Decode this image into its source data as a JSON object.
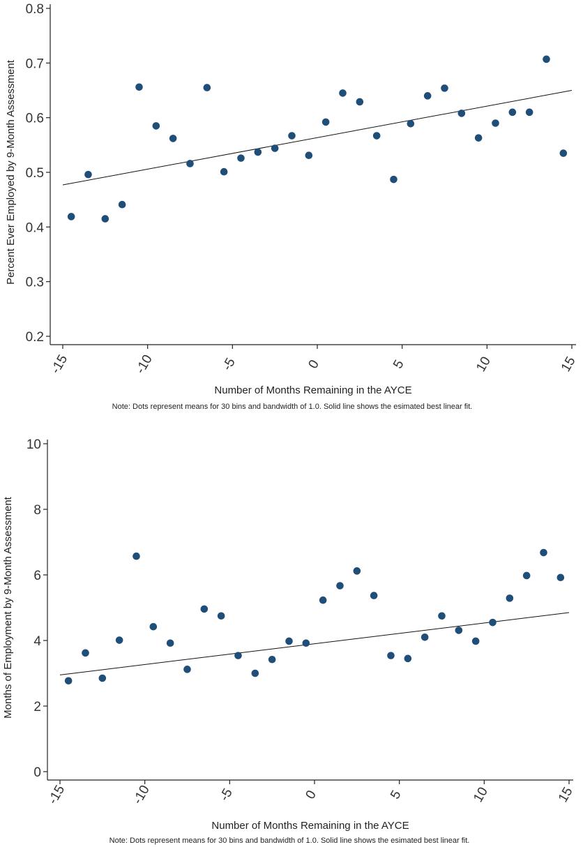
{
  "chart_data": [
    {
      "type": "scatter",
      "title": "",
      "xlabel": "Number of Months Remaining in the AYCE",
      "ylabel": "Percent Ever Employed by 9-Month Assessment",
      "note": "Note: Dots represent means for 30 bins and bandwidth of 1.0. Solid line shows the esimated best linear fit.",
      "xlim": [
        -15,
        15
      ],
      "ylim": [
        0.2,
        0.8
      ],
      "x_ticks": [
        -15,
        -10,
        -5,
        0,
        5,
        10,
        15
      ],
      "x_tick_labels": [
        "-15",
        "-10",
        "-5",
        "0",
        "5",
        "10",
        "15"
      ],
      "y_ticks": [
        0.2,
        0.3,
        0.4,
        0.5,
        0.6,
        0.7,
        0.8
      ],
      "y_tick_labels": [
        "0.2",
        "0.3",
        "0.4",
        "0.5",
        "0.6",
        "0.7",
        "0.8"
      ],
      "grid": false,
      "points": [
        {
          "x": -14.5,
          "y": 0.419
        },
        {
          "x": -13.5,
          "y": 0.496
        },
        {
          "x": -12.5,
          "y": 0.415
        },
        {
          "x": -11.5,
          "y": 0.441
        },
        {
          "x": -10.5,
          "y": 0.656
        },
        {
          "x": -9.5,
          "y": 0.585
        },
        {
          "x": -8.5,
          "y": 0.562
        },
        {
          "x": -7.5,
          "y": 0.516
        },
        {
          "x": -6.5,
          "y": 0.655
        },
        {
          "x": -5.5,
          "y": 0.501
        },
        {
          "x": -4.5,
          "y": 0.526
        },
        {
          "x": -3.5,
          "y": 0.537
        },
        {
          "x": -2.5,
          "y": 0.544
        },
        {
          "x": -1.5,
          "y": 0.567
        },
        {
          "x": -0.5,
          "y": 0.531
        },
        {
          "x": 0.5,
          "y": 0.592
        },
        {
          "x": 1.5,
          "y": 0.645
        },
        {
          "x": 2.5,
          "y": 0.629
        },
        {
          "x": 3.5,
          "y": 0.567
        },
        {
          "x": 4.5,
          "y": 0.487
        },
        {
          "x": 5.5,
          "y": 0.589
        },
        {
          "x": 6.5,
          "y": 0.64
        },
        {
          "x": 7.5,
          "y": 0.654
        },
        {
          "x": 8.5,
          "y": 0.608
        },
        {
          "x": 9.5,
          "y": 0.563
        },
        {
          "x": 10.5,
          "y": 0.59
        },
        {
          "x": 11.5,
          "y": 0.61
        },
        {
          "x": 12.5,
          "y": 0.61
        },
        {
          "x": 13.5,
          "y": 0.707
        },
        {
          "x": 14.5,
          "y": 0.535
        }
      ],
      "fit_line": {
        "x": [
          -15,
          15
        ],
        "y": [
          0.477,
          0.65
        ]
      }
    },
    {
      "type": "scatter",
      "title": "",
      "xlabel": "Number of Months Remaining in the AYCE",
      "ylabel": "Months of Employment by 9-Month Assessment",
      "note": "Note: Dots represent means for 30 bins and bandwidth of 1.0. Solid line shows the esimated best linear fit.",
      "xlim": [
        -15,
        15
      ],
      "ylim": [
        0,
        10
      ],
      "x_ticks": [
        -15,
        -10,
        -5,
        0,
        5,
        10,
        15
      ],
      "x_tick_labels": [
        "-15",
        "-10",
        "-5",
        "0",
        "5",
        "10",
        "15"
      ],
      "y_ticks": [
        0,
        2,
        4,
        6,
        8,
        10
      ],
      "y_tick_labels": [
        "0",
        "2",
        "4",
        "6",
        "8",
        "10"
      ],
      "grid": false,
      "points": [
        {
          "x": -14.5,
          "y": 2.77
        },
        {
          "x": -13.5,
          "y": 3.62
        },
        {
          "x": -12.5,
          "y": 2.85
        },
        {
          "x": -11.5,
          "y": 4.01
        },
        {
          "x": -10.5,
          "y": 6.57
        },
        {
          "x": -9.5,
          "y": 4.42
        },
        {
          "x": -8.5,
          "y": 3.92
        },
        {
          "x": -7.5,
          "y": 3.12
        },
        {
          "x": -6.5,
          "y": 4.96
        },
        {
          "x": -5.5,
          "y": 4.75
        },
        {
          "x": -4.5,
          "y": 3.54
        },
        {
          "x": -3.5,
          "y": 3.0
        },
        {
          "x": -2.5,
          "y": 3.42
        },
        {
          "x": -1.5,
          "y": 3.98
        },
        {
          "x": -0.5,
          "y": 3.92
        },
        {
          "x": 0.5,
          "y": 5.23
        },
        {
          "x": 1.5,
          "y": 5.67
        },
        {
          "x": 2.5,
          "y": 6.12
        },
        {
          "x": 3.5,
          "y": 5.37
        },
        {
          "x": 4.5,
          "y": 3.54
        },
        {
          "x": 5.5,
          "y": 3.45
        },
        {
          "x": 6.5,
          "y": 4.1
        },
        {
          "x": 7.5,
          "y": 4.75
        },
        {
          "x": 8.5,
          "y": 4.31
        },
        {
          "x": 9.5,
          "y": 3.98
        },
        {
          "x": 10.5,
          "y": 4.55
        },
        {
          "x": 11.5,
          "y": 5.29
        },
        {
          "x": 12.5,
          "y": 5.98
        },
        {
          "x": 13.5,
          "y": 6.68
        },
        {
          "x": 14.5,
          "y": 5.92
        }
      ],
      "fit_line": {
        "x": [
          -15,
          15
        ],
        "y": [
          2.95,
          4.85
        ]
      }
    }
  ]
}
